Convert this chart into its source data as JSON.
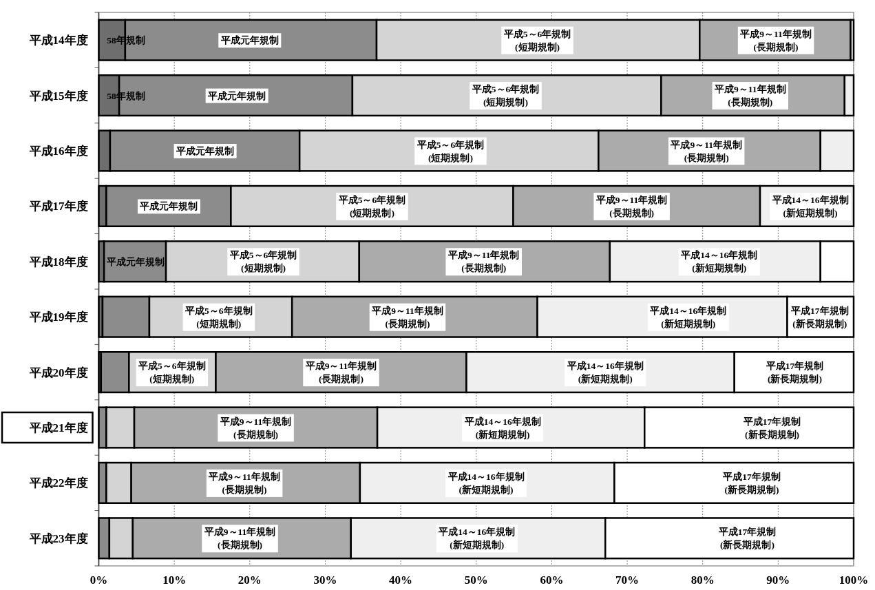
{
  "chart_data": {
    "type": "bar",
    "orientation": "horizontal",
    "stacked": true,
    "grid": "x",
    "categories": [
      "平成14年度",
      "平成15年度",
      "平成16年度",
      "平成17年度",
      "平成18年度",
      "平成19年度",
      "平成20年度",
      "平成21年度",
      "平成22年度",
      "平成23年度"
    ],
    "xlim": [
      0,
      100
    ],
    "xticks": [
      {
        "value": 0,
        "label": "0%"
      },
      {
        "value": 10,
        "label": "10%"
      },
      {
        "value": 20,
        "label": "20%"
      },
      {
        "value": 30,
        "label": "30%"
      },
      {
        "value": 40,
        "label": "40%"
      },
      {
        "value": 50,
        "label": "50%"
      },
      {
        "value": 60,
        "label": "60%"
      },
      {
        "value": 70,
        "label": "70%"
      },
      {
        "value": 80,
        "label": "80%"
      },
      {
        "value": 90,
        "label": "90%"
      },
      {
        "value": 100,
        "label": "100%"
      }
    ],
    "series": [
      {
        "color": "#6e6e6e",
        "values": [
          3.5,
          2.7,
          1.5,
          1.0,
          0.7,
          0.5,
          0.3,
          null,
          null,
          null
        ]
      },
      {
        "color": "#8c8c8c",
        "values": [
          33.3,
          30.9,
          25.1,
          16.5,
          8.2,
          6.2,
          3.7,
          1.0,
          1.0,
          1.4
        ]
      },
      {
        "color": "#d4d4d4",
        "values": [
          42.8,
          40.9,
          39.6,
          37.4,
          25.6,
          18.9,
          11.5,
          3.7,
          3.3,
          3.1
        ]
      },
      {
        "color": "#ababab",
        "values": [
          20.0,
          24.3,
          29.4,
          32.7,
          33.2,
          32.5,
          33.2,
          32.2,
          30.3,
          28.9
        ]
      },
      {
        "color": "#efefef",
        "values": [
          0.4,
          1.2,
          4.4,
          12.4,
          27.9,
          33.1,
          35.5,
          35.4,
          33.7,
          33.7
        ]
      },
      {
        "color": "#ffffff",
        "values": [
          null,
          null,
          null,
          null,
          4.4,
          8.8,
          15.8,
          27.7,
          31.7,
          32.9
        ]
      }
    ],
    "annotations": [
      {
        "text": "58年規制",
        "x": 3.6,
        "y": "平成14年度"
      },
      {
        "text": "平成元年規制",
        "x": 20.0,
        "y": "平成14年度"
      },
      {
        "text": "平成5～6年規制\n(短期規制)",
        "x": 58.1,
        "y": "平成14年度"
      },
      {
        "text": "平成9～11年規制\n(長期規制)",
        "x": 89.7,
        "y": "平成14年度"
      },
      {
        "text": "58年規制",
        "x": 3.6,
        "y": "平成15年度"
      },
      {
        "text": "平成元年規制",
        "x": 18.3,
        "y": "平成15年度"
      },
      {
        "text": "平成5～6年規制\n(短期規制)",
        "x": 53.9,
        "y": "平成15年度"
      },
      {
        "text": "平成9～11年規制\n(長期規制)",
        "x": 86.3,
        "y": "平成15年度"
      },
      {
        "text": "平成元年規制",
        "x": 14.1,
        "y": "平成16年度"
      },
      {
        "text": "平成5～6年規制\n(短期規制)",
        "x": 46.6,
        "y": "平成16年度"
      },
      {
        "text": "平成9～11年規制\n(長期規制)",
        "x": 80.5,
        "y": "平成16年度"
      },
      {
        "text": "平成元年規制",
        "x": 9.3,
        "y": "平成17年度"
      },
      {
        "text": "平成5～6年規制\n(短期規制)",
        "x": 36.2,
        "y": "平成17年度"
      },
      {
        "text": "平成9～11年規制\n(長期規制)",
        "x": 70.6,
        "y": "平成17年度"
      },
      {
        "text": "平成14～16年規制\n(新短期規制)",
        "x": 95.4,
        "y": "平成17年度"
      },
      {
        "text": "平成元年規制",
        "x": 4.85,
        "y": "平成18年度"
      },
      {
        "text": "平成5～6年規制\n(短期規制)",
        "x": 21.8,
        "y": "平成18年度"
      },
      {
        "text": "平成9～11年規制\n(長期規制)",
        "x": 51.0,
        "y": "平成18年度"
      },
      {
        "text": "平成14～16年規制\n(新短期規制)",
        "x": 82.2,
        "y": "平成18年度"
      },
      {
        "text": "平成5～6年規制\n(短期規制)",
        "x": 15.9,
        "y": "平成19年度"
      },
      {
        "text": "平成9～11年規制\n(長期規制)",
        "x": 40.9,
        "y": "平成19年度"
      },
      {
        "text": "平成14～16年規制\n(新短期規制)",
        "x": 78.1,
        "y": "平成19年度"
      },
      {
        "text": "平成17年規制\n(新長期規制)",
        "x": 97.5,
        "y": "平成19年度"
      },
      {
        "text": "平成5～6年規制\n(短期規制)",
        "x": 9.7,
        "y": "平成20年度"
      },
      {
        "text": "平成9～11年規制\n(長期規制)",
        "x": 32.1,
        "y": "平成20年度"
      },
      {
        "text": "平成14～16年規制\n(新短期規制)",
        "x": 67.1,
        "y": "平成20年度"
      },
      {
        "text": "平成17年規制\n(新長期規制)",
        "x": 92.2,
        "y": "平成20年度"
      },
      {
        "text": "平成9～11年規制\n(長期規制)",
        "x": 20.8,
        "y": "平成21年度"
      },
      {
        "text": "平成14～16年規制\n(新短期規制)",
        "x": 53.5,
        "y": "平成21年度"
      },
      {
        "text": "平成17年規制\n(新長期規制)",
        "x": 89.2,
        "y": "平成21年度"
      },
      {
        "text": "平成9～11年規制\n(長期規制)",
        "x": 19.3,
        "y": "平成22年度"
      },
      {
        "text": "平成14～16年規制\n(新短期規制)",
        "x": 51.3,
        "y": "平成22年度"
      },
      {
        "text": "平成17年規制\n(新長期規制)",
        "x": 86.5,
        "y": "平成22年度"
      },
      {
        "text": "平成9～11年規制\n(長期規制)",
        "x": 18.7,
        "y": "平成23年度"
      },
      {
        "text": "平成14～16年規制\n(新短期規制)",
        "x": 50.1,
        "y": "平成23年度"
      },
      {
        "text": "平成17年規制\n(新長期規制)",
        "x": 85.9,
        "y": "平成23年度"
      }
    ]
  }
}
